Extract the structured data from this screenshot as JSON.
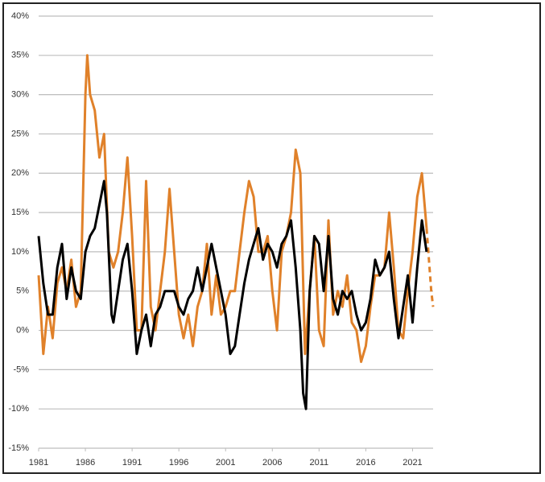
{
  "chart_data": {
    "type": "line",
    "xlim": [
      1981,
      2023.2
    ],
    "xticks": [
      1981,
      1986,
      1991,
      1996,
      2001,
      2006,
      2011,
      2016,
      2021
    ],
    "ylim": [
      -15,
      40
    ],
    "yticks": [
      {
        "value": -15,
        "label": "-15%"
      },
      {
        "value": -10,
        "label": "-10%"
      },
      {
        "value": -5,
        "label": "-5%"
      },
      {
        "value": 0,
        "label": "0%"
      },
      {
        "value": 5,
        "label": "5%"
      },
      {
        "value": 10,
        "label": "10%"
      },
      {
        "value": 15,
        "label": "15%"
      },
      {
        "value": 20,
        "label": "20%"
      },
      {
        "value": 25,
        "label": "25%"
      },
      {
        "value": 30,
        "label": "30%"
      },
      {
        "value": 35,
        "label": "35%"
      },
      {
        "value": 40,
        "label": "40%"
      }
    ],
    "grid": true,
    "series": [
      {
        "color": "#e0812a",
        "dash": false,
        "x": [
          1981,
          1981.5,
          1982,
          1982.5,
          1983,
          1983.5,
          1984,
          1984.5,
          1985,
          1985.5,
          1986,
          1986.2,
          1986.5,
          1987,
          1987.5,
          1988,
          1988.5,
          1989,
          1989.5,
          1990,
          1990.5,
          1991,
          1991.5,
          1992,
          1992.5,
          1993,
          1993.5,
          1994,
          1994.5,
          1995,
          1995.5,
          1996,
          1996.5,
          1997,
          1997.5,
          1998,
          1998.5,
          1999,
          1999.5,
          2000,
          2000.5,
          2001,
          2001.5,
          2002,
          2002.5,
          2003,
          2003.5,
          2004,
          2004.5,
          2005,
          2005.5,
          2006,
          2006.5,
          2007,
          2007.5,
          2008,
          2008.5,
          2009,
          2009.5,
          2010,
          2010.5,
          2011,
          2011.5,
          2012,
          2012.5,
          2013,
          2013.5,
          2014,
          2014.5,
          2015,
          2015.5,
          2016,
          2016.5,
          2017,
          2017.5,
          2018,
          2018.5,
          2019,
          2019.5,
          2020,
          2020.5,
          2021,
          2021.5,
          2022,
          2022.5
        ],
        "values": [
          7,
          -3,
          3,
          -1,
          6,
          8,
          5,
          9,
          3,
          5,
          30,
          35,
          30,
          28,
          22,
          25,
          10,
          8,
          10,
          15,
          22,
          12,
          0,
          0,
          19,
          3,
          0,
          5,
          10,
          18,
          10,
          2,
          -1,
          2,
          -2,
          3,
          5,
          11,
          2,
          7,
          2,
          3,
          5,
          5,
          10,
          15,
          19,
          17,
          10,
          10,
          12,
          5,
          0,
          10,
          12,
          15,
          23,
          20,
          -3,
          5,
          12,
          0,
          -2,
          14,
          2,
          5,
          3,
          7,
          1,
          0,
          -4,
          -2,
          3,
          7,
          7,
          8,
          15,
          8,
          0,
          -1,
          5,
          10,
          17,
          20,
          13
        ]
      },
      {
        "color": "#e0812a",
        "dash": true,
        "x": [
          2022.5,
          2023,
          2023.2
        ],
        "values": [
          13,
          5,
          3
        ]
      },
      {
        "color": "#000000",
        "dash": false,
        "x": [
          1981,
          1981.5,
          1982,
          1982.5,
          1983,
          1983.5,
          1984,
          1984.5,
          1985,
          1985.5,
          1986,
          1986.5,
          1987,
          1987.5,
          1988,
          1988.3,
          1988.8,
          1989,
          1989.5,
          1990,
          1990.5,
          1991,
          1991.5,
          1992,
          1992.5,
          1993,
          1993.5,
          1994,
          1994.5,
          1995,
          1995.5,
          1996,
          1996.5,
          1997,
          1997.5,
          1998,
          1998.5,
          1999,
          1999.5,
          2000,
          2000.5,
          2001,
          2001.5,
          2002,
          2002.5,
          2003,
          2003.5,
          2004,
          2004.5,
          2005,
          2005.5,
          2006,
          2006.5,
          2007,
          2007.5,
          2008,
          2008.5,
          2009,
          2009.3,
          2009.6,
          2010,
          2010.5,
          2011,
          2011.5,
          2012,
          2012.5,
          2013,
          2013.5,
          2014,
          2014.5,
          2015,
          2015.5,
          2016,
          2016.5,
          2017,
          2017.5,
          2018,
          2018.5,
          2019,
          2019.5,
          2020,
          2020.5,
          2021,
          2021.5,
          2022,
          2022.5
        ],
        "values": [
          12,
          6,
          2,
          2,
          8,
          11,
          4,
          8,
          5,
          4,
          10,
          12,
          13,
          16,
          19,
          15,
          2,
          1,
          5,
          9,
          11,
          5,
          -3,
          0,
          2,
          -2,
          2,
          3,
          5,
          5,
          5,
          3,
          2,
          4,
          5,
          8,
          5,
          8,
          11,
          8,
          5,
          2,
          -3,
          -2,
          2,
          6,
          9,
          11,
          13,
          9,
          11,
          10,
          8,
          11,
          12,
          14,
          8,
          0,
          -8,
          -10,
          5,
          12,
          11,
          5,
          12,
          4,
          2,
          5,
          4,
          5,
          2,
          0,
          1,
          4,
          9,
          7,
          8,
          10,
          4,
          -1,
          3,
          7,
          1,
          8,
          14,
          10
        ]
      }
    ]
  }
}
